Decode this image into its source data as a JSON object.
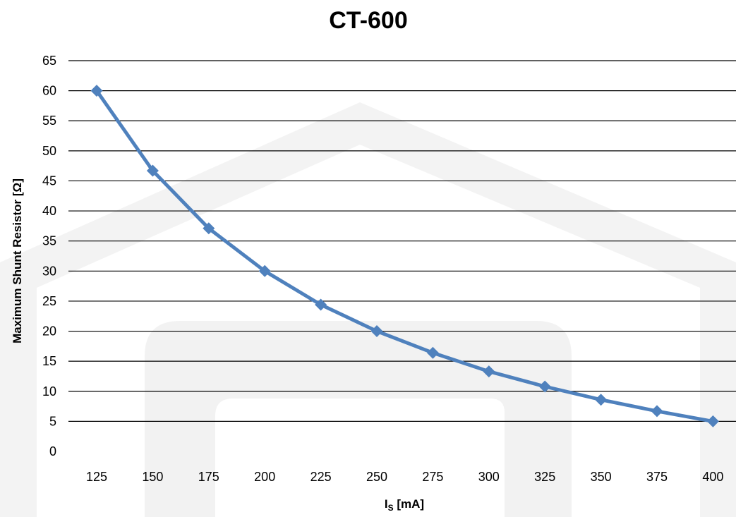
{
  "chart_data": {
    "type": "line",
    "title": "CT-600",
    "xlabel_main": "I",
    "xlabel_sub": "S",
    "xlabel_unit": " [mA]",
    "ylabel": "Maximum Shunt Resistor [Ω]",
    "categories": [
      "125",
      "150",
      "175",
      "200",
      "225",
      "250",
      "275",
      "300",
      "325",
      "350",
      "375",
      "400"
    ],
    "series": [
      {
        "values": [
          60,
          46.7,
          37.1,
          30,
          24.4,
          20,
          16.4,
          13.3,
          10.8,
          8.6,
          6.7,
          5
        ]
      }
    ],
    "y_ticks": [
      "0",
      "5",
      "10",
      "15",
      "20",
      "25",
      "30",
      "35",
      "40",
      "45",
      "50",
      "55",
      "60",
      "65"
    ],
    "ylim": [
      0,
      65
    ],
    "grid": true,
    "line_color": "#4F81BD",
    "marker": "diamond"
  }
}
